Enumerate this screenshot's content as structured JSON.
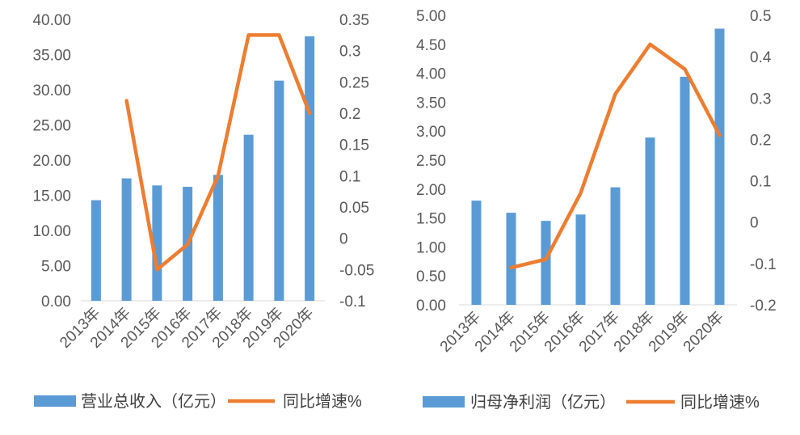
{
  "chart_data": [
    {
      "type": "bar+line",
      "categories": [
        "2013年",
        "2014年",
        "2015年",
        "2016年",
        "2017年",
        "2018年",
        "2019年",
        "2020年"
      ],
      "y_left": {
        "ticks": [
          "0.00",
          "5.00",
          "10.00",
          "15.00",
          "20.00",
          "25.00",
          "30.00",
          "35.00",
          "40.00"
        ],
        "lim": [
          0,
          40
        ]
      },
      "y_right": {
        "ticks": [
          "-0.1",
          "-0.05",
          "0",
          "0.05",
          "0.1",
          "0.15",
          "0.2",
          "0.25",
          "0.3",
          "0.35"
        ],
        "lim": [
          -0.1,
          0.35
        ]
      },
      "series": [
        {
          "name": "营业总收入（亿元）",
          "type": "bar",
          "axis": "left",
          "color": "#5B9BD5",
          "values": [
            14.3,
            17.4,
            16.4,
            16.2,
            17.9,
            23.6,
            31.3,
            37.6
          ]
        },
        {
          "name": "同比增速%",
          "type": "line",
          "axis": "right",
          "color": "#ED7D31",
          "values": [
            null,
            0.22,
            -0.05,
            -0.01,
            0.1,
            0.325,
            0.325,
            0.2
          ]
        }
      ]
    },
    {
      "type": "bar+line",
      "categories": [
        "2013年",
        "2014年",
        "2015年",
        "2016年",
        "2017年",
        "2018年",
        "2019年",
        "2020年"
      ],
      "y_left": {
        "ticks": [
          "0.00",
          "0.50",
          "1.00",
          "1.50",
          "2.00",
          "2.50",
          "3.00",
          "3.50",
          "4.00",
          "4.50",
          "5.00"
        ],
        "lim": [
          0,
          5
        ]
      },
      "y_right": {
        "ticks": [
          "-0.2",
          "-0.1",
          "0",
          "0.1",
          "0.2",
          "0.3",
          "0.4",
          "0.5"
        ],
        "lim": [
          -0.2,
          0.5
        ]
      },
      "series": [
        {
          "name": "归母净利润（亿元）",
          "type": "bar",
          "axis": "left",
          "color": "#5B9BD5",
          "values": [
            1.8,
            1.59,
            1.45,
            1.56,
            2.03,
            2.89,
            3.94,
            4.77
          ]
        },
        {
          "name": "同比增速%",
          "type": "line",
          "axis": "right",
          "color": "#ED7D31",
          "values": [
            null,
            -0.11,
            -0.09,
            0.07,
            0.31,
            0.43,
            0.37,
            0.21
          ]
        }
      ]
    }
  ]
}
